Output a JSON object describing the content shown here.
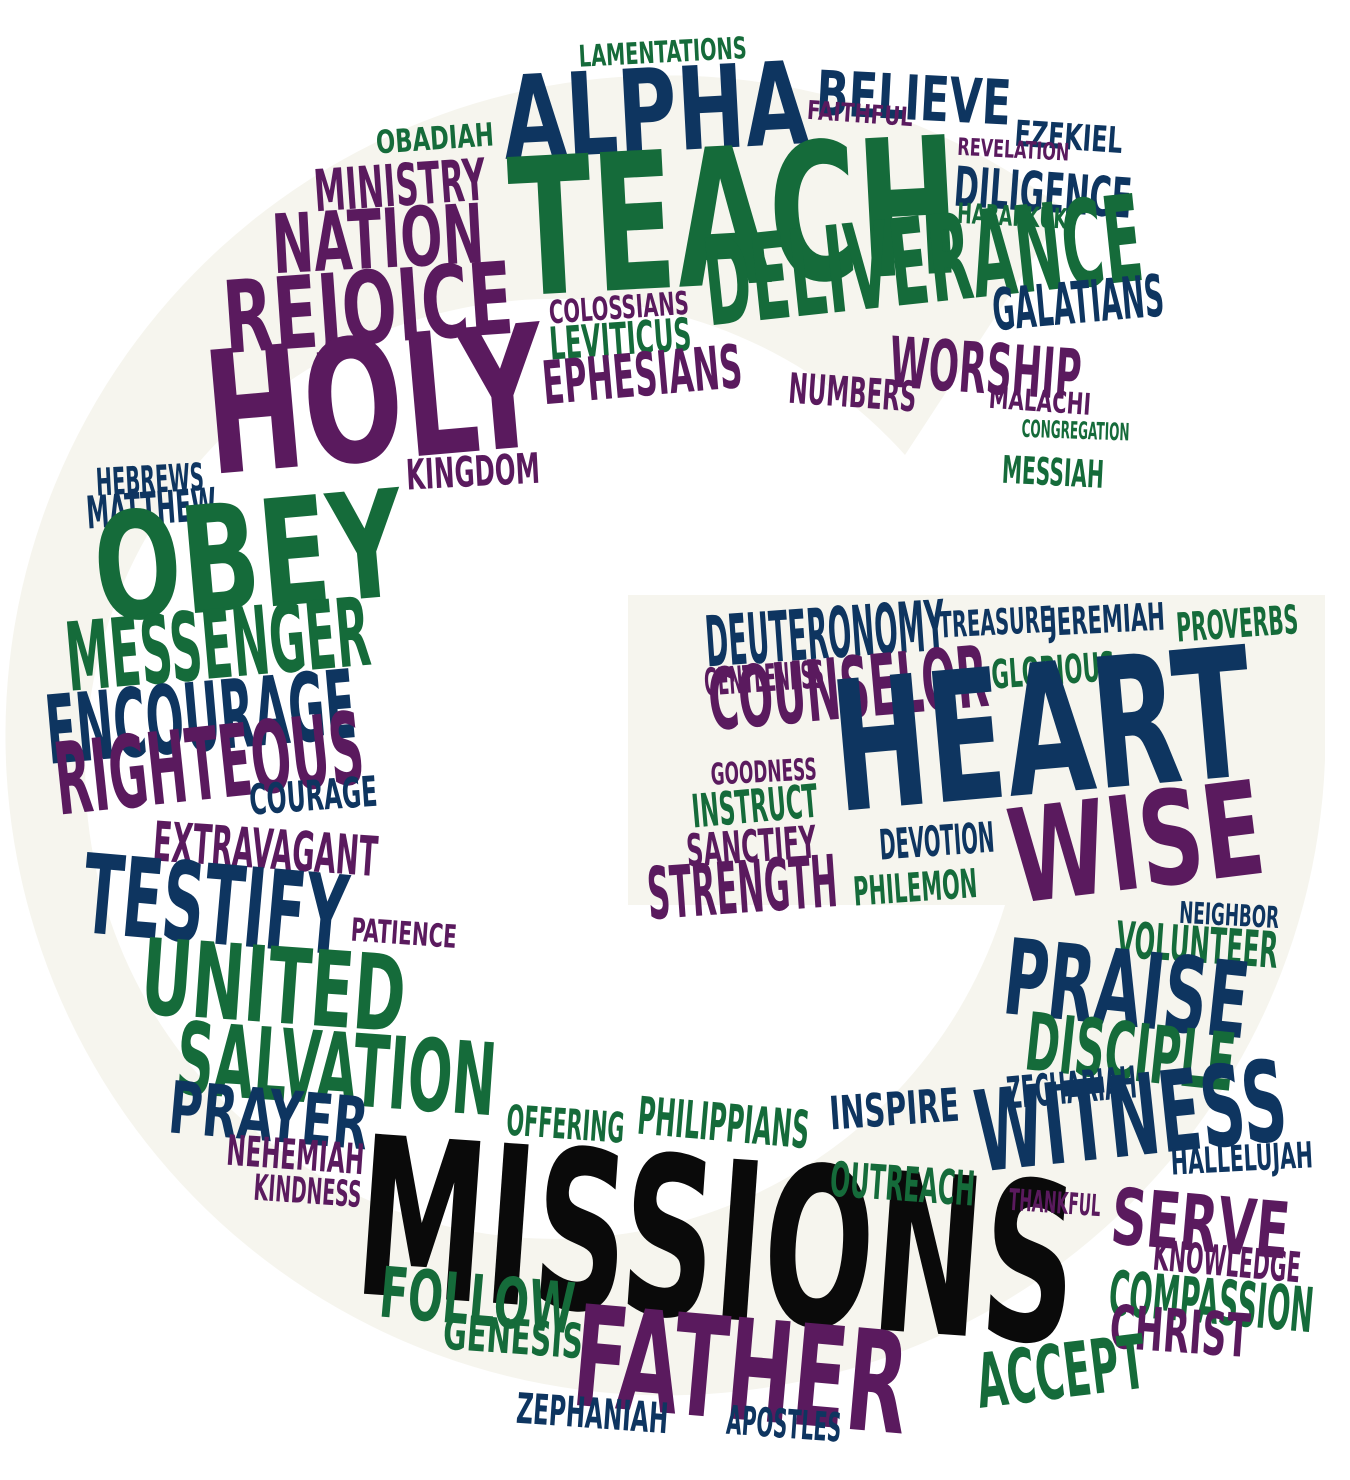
{
  "colors": {
    "shape": "#f6f5ee",
    "green": "#156b3a",
    "navy": "#0e3560",
    "purple": "#5a1a5e",
    "black": "#0a0a0a"
  },
  "words": [
    {
      "text": "LAMENTATIONS",
      "color": "green"
    },
    {
      "text": "ALPHA",
      "color": "navy"
    },
    {
      "text": "BELIEVE",
      "color": "navy"
    },
    {
      "text": "FAITHFUL",
      "color": "purple"
    },
    {
      "text": "EZEKIEL",
      "color": "navy"
    },
    {
      "text": "OBADIAH",
      "color": "green"
    },
    {
      "text": "REVELATION",
      "color": "purple"
    },
    {
      "text": "MINISTRY",
      "color": "purple"
    },
    {
      "text": "TEACH",
      "color": "green"
    },
    {
      "text": "DILIGENCE",
      "color": "navy"
    },
    {
      "text": "HABAKKUK",
      "color": "green"
    },
    {
      "text": "NATION",
      "color": "purple"
    },
    {
      "text": "DELIVERANCE",
      "color": "green"
    },
    {
      "text": "REJOICE",
      "color": "purple"
    },
    {
      "text": "GALATIANS",
      "color": "navy"
    },
    {
      "text": "COLOSSIANS",
      "color": "purple"
    },
    {
      "text": "LEVITICUS",
      "color": "green"
    },
    {
      "text": "WORSHIP",
      "color": "purple"
    },
    {
      "text": "HOLY",
      "color": "purple"
    },
    {
      "text": "EPHESIANS",
      "color": "purple"
    },
    {
      "text": "NUMBERS",
      "color": "purple"
    },
    {
      "text": "MALACHI",
      "color": "purple"
    },
    {
      "text": "CONGREGATION",
      "color": "green"
    },
    {
      "text": "MESSIAH",
      "color": "green"
    },
    {
      "text": "KINGDOM",
      "color": "purple"
    },
    {
      "text": "HEBREWS",
      "color": "navy"
    },
    {
      "text": "MATTHEW",
      "color": "navy"
    },
    {
      "text": "OBEY",
      "color": "green"
    },
    {
      "text": "MESSENGER",
      "color": "green"
    },
    {
      "text": "DEUTERONOMY",
      "color": "navy"
    },
    {
      "text": "TREASURE",
      "color": "navy"
    },
    {
      "text": "JEREMIAH",
      "color": "navy"
    },
    {
      "text": "PROVERBS",
      "color": "green"
    },
    {
      "text": "GENTLENESS",
      "color": "purple"
    },
    {
      "text": "GLORIOUS",
      "color": "green"
    },
    {
      "text": "COUNSELOR",
      "color": "purple"
    },
    {
      "text": "ENCOURAGE",
      "color": "navy"
    },
    {
      "text": "HEART",
      "color": "navy"
    },
    {
      "text": "RIGHTEOUS",
      "color": "purple"
    },
    {
      "text": "GOODNESS",
      "color": "purple"
    },
    {
      "text": "COURAGE",
      "color": "navy"
    },
    {
      "text": "INSTRUCT",
      "color": "green"
    },
    {
      "text": "EXTRAVAGANT",
      "color": "purple"
    },
    {
      "text": "SANCTIFY",
      "color": "purple"
    },
    {
      "text": "DEVOTION",
      "color": "navy"
    },
    {
      "text": "WISE",
      "color": "purple"
    },
    {
      "text": "TESTIFY",
      "color": "navy"
    },
    {
      "text": "STRENGTH",
      "color": "purple"
    },
    {
      "text": "PHILEMON",
      "color": "green"
    },
    {
      "text": "NEIGHBOR",
      "color": "navy"
    },
    {
      "text": "PATIENCE",
      "color": "purple"
    },
    {
      "text": "VOLUNTEER",
      "color": "green"
    },
    {
      "text": "UNITED",
      "color": "green"
    },
    {
      "text": "PRAISE",
      "color": "navy"
    },
    {
      "text": "SALVATION",
      "color": "green"
    },
    {
      "text": "DISCIPLE",
      "color": "green"
    },
    {
      "text": "ZECHARIAH",
      "color": "navy"
    },
    {
      "text": "PRAYER",
      "color": "navy"
    },
    {
      "text": "OFFERING",
      "color": "green"
    },
    {
      "text": "PHILIPPIANS",
      "color": "green"
    },
    {
      "text": "INSPIRE",
      "color": "navy"
    },
    {
      "text": "WITNESS",
      "color": "navy"
    },
    {
      "text": "NEHEMIAH",
      "color": "purple"
    },
    {
      "text": "HALLELUJAH",
      "color": "navy"
    },
    {
      "text": "MISSIONS",
      "color": "black"
    },
    {
      "text": "KINDNESS",
      "color": "purple"
    },
    {
      "text": "OUTREACH",
      "color": "green"
    },
    {
      "text": "THANKFUL",
      "color": "purple"
    },
    {
      "text": "SERVE",
      "color": "purple"
    },
    {
      "text": "KNOWLEDGE",
      "color": "purple"
    },
    {
      "text": "FOLLOW",
      "color": "green"
    },
    {
      "text": "COMPASSION",
      "color": "green"
    },
    {
      "text": "GENESIS",
      "color": "green"
    },
    {
      "text": "FATHER",
      "color": "purple"
    },
    {
      "text": "CHRIST",
      "color": "purple"
    },
    {
      "text": "ACCEPT",
      "color": "green"
    },
    {
      "text": "ZEPHANIAH",
      "color": "navy"
    },
    {
      "text": "APOSTLES",
      "color": "navy"
    }
  ]
}
